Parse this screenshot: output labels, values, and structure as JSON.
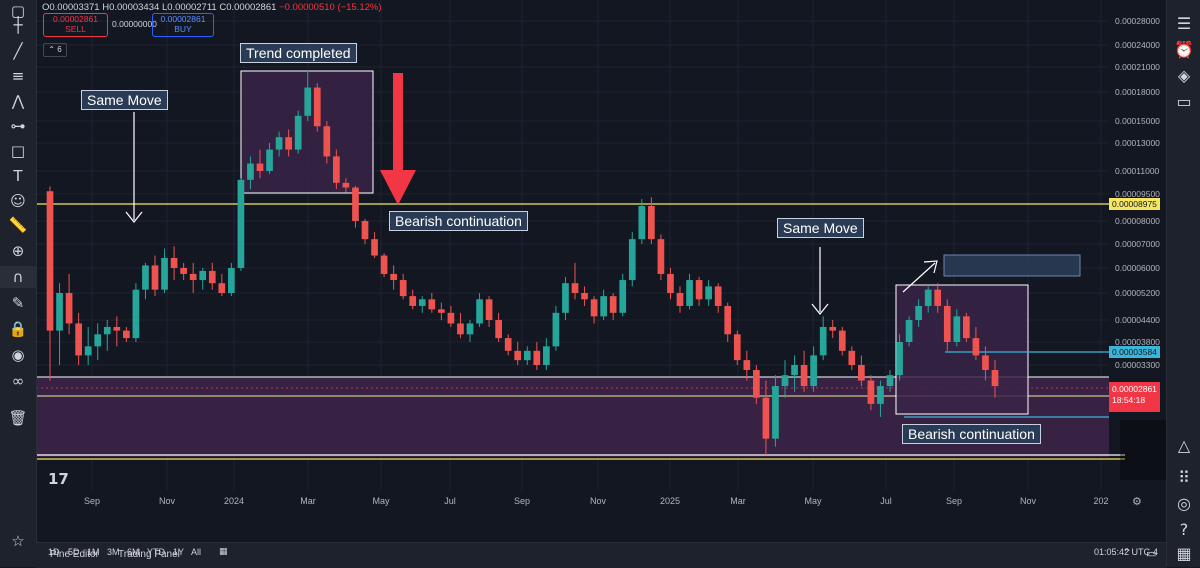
{
  "ohlc": {
    "o": "O0.00003371",
    "h": "H0.00003434",
    "l": "L0.00002711",
    "c": "C0.00002861",
    "change": "−0.00000510 (−15.12%)"
  },
  "trade": {
    "sell_price": "0.00002861",
    "sell_label": "SELL",
    "spread": "0.00000000",
    "buy_price": "0.00002861",
    "buy_label": "BUY"
  },
  "indicator_count": "6",
  "annotations": {
    "trend_completed": "Trend completed",
    "same_move_1": "Same Move",
    "same_move_2": "Same Move",
    "bearish_1": "Bearish continuation",
    "bearish_2": "Bearish continuation"
  },
  "price_badges": {
    "yellow_level": "0.00008975",
    "cyan_level": "0.00003584",
    "current_price": "0.00002861",
    "countdown": "18:54:18"
  },
  "time_ranges": [
    "1D",
    "5D",
    "1M",
    "3M",
    "6M",
    "YTD",
    "1Y",
    "All"
  ],
  "clock": "01:05:42 UTC-4",
  "bottom_tabs": [
    "Pine Editor",
    "Trading Panel"
  ],
  "colors": {
    "background": "#131722",
    "up": "#26a69a",
    "down": "#ef5350",
    "yellow_line": "#f5e663",
    "cyan_line": "#3bb6d9",
    "zone": "#3a2347",
    "arrow_red": "#f23645"
  },
  "chart_data": {
    "type": "candlestick",
    "x_labels": [
      "Sep",
      "Nov",
      "2024",
      "Mar",
      "May",
      "Jul",
      "Sep",
      "Nov",
      "2025",
      "Mar",
      "May",
      "Jul",
      "Sep",
      "Nov",
      "202"
    ],
    "y_labels": [
      "0.00028000",
      "0.00024000",
      "0.00021000",
      "0.00018000",
      "0.00015000",
      "0.00013000",
      "0.00011000",
      "0.00009500",
      "0.00008000",
      "0.00007000",
      "0.00006000",
      "0.00005200",
      "0.00004400",
      "0.00003800",
      "0.00003300"
    ],
    "last": {
      "open": 3.371e-05,
      "high": 3.434e-05,
      "low": 2.711e-05,
      "close": 2.861e-05
    },
    "horizontal_levels": [
      8.975e-05,
      3.584e-05
    ],
    "candles": [
      {
        "o": 9.67e-05,
        "h": 9.97e-05,
        "l": 3e-05,
        "c": 4.1e-05
      },
      {
        "o": 4.1e-05,
        "h": 5.5e-05,
        "l": 3.3e-05,
        "c": 5.2e-05
      },
      {
        "o": 5.2e-05,
        "h": 5.8e-05,
        "l": 4e-05,
        "c": 4.3e-05
      },
      {
        "o": 4.3e-05,
        "h": 4.6e-05,
        "l": 3.3e-05,
        "c": 3.5e-05
      },
      {
        "o": 3.5e-05,
        "h": 4.2e-05,
        "l": 3.3e-05,
        "c": 3.7e-05
      },
      {
        "o": 3.7e-05,
        "h": 4.3e-05,
        "l": 3.4e-05,
        "c": 4e-05
      },
      {
        "o": 4e-05,
        "h": 4.4e-05,
        "l": 3.6e-05,
        "c": 4.2e-05
      },
      {
        "o": 4.2e-05,
        "h": 4.5e-05,
        "l": 3.7e-05,
        "c": 4.1e-05
      },
      {
        "o": 4.1e-05,
        "h": 4.2e-05,
        "l": 3.8e-05,
        "c": 3.9e-05
      },
      {
        "o": 3.9e-05,
        "h": 5.5e-05,
        "l": 3.8e-05,
        "c": 5.3e-05
      },
      {
        "o": 5.3e-05,
        "h": 6.2e-05,
        "l": 5e-05,
        "c": 6.1e-05
      },
      {
        "o": 6.1e-05,
        "h": 6.5e-05,
        "l": 5.1e-05,
        "c": 5.3e-05
      },
      {
        "o": 5.3e-05,
        "h": 6.8e-05,
        "l": 5.2e-05,
        "c": 6.4e-05
      },
      {
        "o": 6.4e-05,
        "h": 6.9e-05,
        "l": 5.6e-05,
        "c": 6e-05
      },
      {
        "o": 6e-05,
        "h": 6.2e-05,
        "l": 5.6e-05,
        "c": 5.8e-05
      },
      {
        "o": 5.8e-05,
        "h": 6.2e-05,
        "l": 5.2e-05,
        "c": 5.6e-05
      },
      {
        "o": 5.6e-05,
        "h": 6e-05,
        "l": 5.3e-05,
        "c": 5.9e-05
      },
      {
        "o": 5.9e-05,
        "h": 6.2e-05,
        "l": 5.3e-05,
        "c": 5.5e-05
      },
      {
        "o": 5.5e-05,
        "h": 5.8e-05,
        "l": 5.1e-05,
        "c": 5.2e-05
      },
      {
        "o": 5.2e-05,
        "h": 6.2e-05,
        "l": 5.1e-05,
        "c": 6e-05
      },
      {
        "o": 6e-05,
        "h": 0.000105,
        "l": 5.9e-05,
        "c": 0.000104
      },
      {
        "o": 0.000104,
        "h": 0.00012,
        "l": 9.8e-05,
        "c": 0.000115
      },
      {
        "o": 0.000115,
        "h": 0.000125,
        "l": 0.000105,
        "c": 0.00011
      },
      {
        "o": 0.00011,
        "h": 0.00013,
        "l": 0.000108,
        "c": 0.000125
      },
      {
        "o": 0.000125,
        "h": 0.00014,
        "l": 0.00012,
        "c": 0.000135
      },
      {
        "o": 0.000135,
        "h": 0.000142,
        "l": 0.00012,
        "c": 0.000125
      },
      {
        "o": 0.000125,
        "h": 0.00016,
        "l": 0.000122,
        "c": 0.000155
      },
      {
        "o": 0.000155,
        "h": 0.000205,
        "l": 0.00015,
        "c": 0.000185
      },
      {
        "o": 0.000185,
        "h": 0.00019,
        "l": 0.00014,
        "c": 0.000145
      },
      {
        "o": 0.000145,
        "h": 0.00015,
        "l": 0.000115,
        "c": 0.00012
      },
      {
        "o": 0.00012,
        "h": 0.000125,
        "l": 9.8e-05,
        "c": 0.000102
      },
      {
        "o": 0.000102,
        "h": 0.000105,
        "l": 9.6e-05,
        "c": 9.9e-05
      },
      {
        "o": 9.9e-05,
        "h": 0.0001,
        "l": 7.7e-05,
        "c": 8e-05
      },
      {
        "o": 8e-05,
        "h": 8.1e-05,
        "l": 7e-05,
        "c": 7.2e-05
      },
      {
        "o": 7.2e-05,
        "h": 7.5e-05,
        "l": 6.4e-05,
        "c": 6.5e-05
      },
      {
        "o": 6.5e-05,
        "h": 6.6e-05,
        "l": 5.7e-05,
        "c": 5.8e-05
      },
      {
        "o": 5.8e-05,
        "h": 6.1e-05,
        "l": 5.3e-05,
        "c": 5.6e-05
      },
      {
        "o": 5.6e-05,
        "h": 5.8e-05,
        "l": 5e-05,
        "c": 5.1e-05
      },
      {
        "o": 5.1e-05,
        "h": 5.3e-05,
        "l": 4.7e-05,
        "c": 4.8e-05
      },
      {
        "o": 4.8e-05,
        "h": 5.1e-05,
        "l": 4.6e-05,
        "c": 5e-05
      },
      {
        "o": 5e-05,
        "h": 5.2e-05,
        "l": 4.6e-05,
        "c": 4.7e-05
      },
      {
        "o": 4.7e-05,
        "h": 4.9e-05,
        "l": 4.4e-05,
        "c": 4.6e-05
      },
      {
        "o": 4.6e-05,
        "h": 4.8e-05,
        "l": 4.2e-05,
        "c": 4.3e-05
      },
      {
        "o": 4.3e-05,
        "h": 4.6e-05,
        "l": 3.9e-05,
        "c": 4e-05
      },
      {
        "o": 4e-05,
        "h": 4.4e-05,
        "l": 3.8e-05,
        "c": 4.3e-05
      },
      {
        "o": 4.3e-05,
        "h": 5.2e-05,
        "l": 4.2e-05,
        "c": 5e-05
      },
      {
        "o": 5e-05,
        "h": 5.1e-05,
        "l": 4.2e-05,
        "c": 4.4e-05
      },
      {
        "o": 4.4e-05,
        "h": 4.6e-05,
        "l": 3.8e-05,
        "c": 3.9e-05
      },
      {
        "o": 3.9e-05,
        "h": 4e-05,
        "l": 3.5e-05,
        "c": 3.6e-05
      },
      {
        "o": 3.6e-05,
        "h": 3.8e-05,
        "l": 3.3e-05,
        "c": 3.4e-05
      },
      {
        "o": 3.4e-05,
        "h": 3.7e-05,
        "l": 3.3e-05,
        "c": 3.6e-05
      },
      {
        "o": 3.6e-05,
        "h": 3.8e-05,
        "l": 3.2e-05,
        "c": 3.3e-05
      },
      {
        "o": 3.3e-05,
        "h": 3.9e-05,
        "l": 3.2e-05,
        "c": 3.7e-05
      },
      {
        "o": 3.7e-05,
        "h": 4.8e-05,
        "l": 3.6e-05,
        "c": 4.6e-05
      },
      {
        "o": 4.6e-05,
        "h": 5.7e-05,
        "l": 4.4e-05,
        "c": 5.5e-05
      },
      {
        "o": 5.5e-05,
        "h": 6.2e-05,
        "l": 5e-05,
        "c": 5.2e-05
      },
      {
        "o": 5.2e-05,
        "h": 5.4e-05,
        "l": 4.8e-05,
        "c": 5e-05
      },
      {
        "o": 5e-05,
        "h": 5.1e-05,
        "l": 4.3e-05,
        "c": 4.5e-05
      },
      {
        "o": 4.5e-05,
        "h": 5.3e-05,
        "l": 4.4e-05,
        "c": 5.1e-05
      },
      {
        "o": 5.1e-05,
        "h": 5.2e-05,
        "l": 4.4e-05,
        "c": 4.6e-05
      },
      {
        "o": 4.6e-05,
        "h": 5.8e-05,
        "l": 4.5e-05,
        "c": 5.6e-05
      },
      {
        "o": 5.6e-05,
        "h": 7.5e-05,
        "l": 5.4e-05,
        "c": 7.2e-05
      },
      {
        "o": 7.2e-05,
        "h": 9.2e-05,
        "l": 7e-05,
        "c": 8.8e-05
      },
      {
        "o": 8.8e-05,
        "h": 9.3e-05,
        "l": 7e-05,
        "c": 7.2e-05
      },
      {
        "o": 7.2e-05,
        "h": 7.4e-05,
        "l": 5.6e-05,
        "c": 5.8e-05
      },
      {
        "o": 5.8e-05,
        "h": 6e-05,
        "l": 5e-05,
        "c": 5.2e-05
      },
      {
        "o": 5.2e-05,
        "h": 5.4e-05,
        "l": 4.6e-05,
        "c": 4.8e-05
      },
      {
        "o": 4.8e-05,
        "h": 5.8e-05,
        "l": 4.7e-05,
        "c": 5.6e-05
      },
      {
        "o": 5.6e-05,
        "h": 5.7e-05,
        "l": 4.8e-05,
        "c": 5e-05
      },
      {
        "o": 5e-05,
        "h": 5.6e-05,
        "l": 4.8e-05,
        "c": 5.4e-05
      },
      {
        "o": 5.4e-05,
        "h": 5.5e-05,
        "l": 4.6e-05,
        "c": 4.8e-05
      },
      {
        "o": 4.8e-05,
        "h": 4.9e-05,
        "l": 3.8e-05,
        "c": 4e-05
      },
      {
        "o": 4e-05,
        "h": 4.1e-05,
        "l": 3.3e-05,
        "c": 3.4e-05
      },
      {
        "o": 3.4e-05,
        "h": 3.6e-05,
        "l": 3e-05,
        "c": 3.2e-05
      },
      {
        "o": 3.2e-05,
        "h": 3.3e-05,
        "l": 2.6e-05,
        "c": 2.7e-05
      },
      {
        "o": 2.7e-05,
        "h": 3e-05,
        "l": 1.9e-05,
        "c": 2.1e-05
      },
      {
        "o": 2.1e-05,
        "h": 3.1e-05,
        "l": 2e-05,
        "c": 2.9e-05
      },
      {
        "o": 2.9e-05,
        "h": 3.4e-05,
        "l": 2.7e-05,
        "c": 3.1e-05
      },
      {
        "o": 3.1e-05,
        "h": 3.5e-05,
        "l": 2.8e-05,
        "c": 3.3e-05
      },
      {
        "o": 3.3e-05,
        "h": 3.6e-05,
        "l": 2.8e-05,
        "c": 2.9e-05
      },
      {
        "o": 2.9e-05,
        "h": 3.7e-05,
        "l": 2.8e-05,
        "c": 3.5e-05
      },
      {
        "o": 3.5e-05,
        "h": 4.5e-05,
        "l": 3.4e-05,
        "c": 4.2e-05
      },
      {
        "o": 4.2e-05,
        "h": 4.4e-05,
        "l": 3.9e-05,
        "c": 4.1e-05
      },
      {
        "o": 4.1e-05,
        "h": 4.2e-05,
        "l": 3.5e-05,
        "c": 3.6e-05
      },
      {
        "o": 3.6e-05,
        "h": 3.7e-05,
        "l": 3.2e-05,
        "c": 3.3e-05
      },
      {
        "o": 3.3e-05,
        "h": 3.5e-05,
        "l": 2.9e-05,
        "c": 3e-05
      },
      {
        "o": 3e-05,
        "h": 3.1e-05,
        "l": 2.5e-05,
        "c": 2.6e-05
      },
      {
        "o": 2.6e-05,
        "h": 3e-05,
        "l": 2.4e-05,
        "c": 2.9e-05
      },
      {
        "o": 2.9e-05,
        "h": 3.2e-05,
        "l": 2.8e-05,
        "c": 3.1e-05
      },
      {
        "o": 3.1e-05,
        "h": 4e-05,
        "l": 3e-05,
        "c": 3.8e-05
      },
      {
        "o": 3.8e-05,
        "h": 4.5e-05,
        "l": 3.7e-05,
        "c": 4.4e-05
      },
      {
        "o": 4.4e-05,
        "h": 5e-05,
        "l": 4.2e-05,
        "c": 4.8e-05
      },
      {
        "o": 4.8e-05,
        "h": 5.4e-05,
        "l": 4.6e-05,
        "c": 5.3e-05
      },
      {
        "o": 5.3e-05,
        "h": 5.5e-05,
        "l": 4.6e-05,
        "c": 4.8e-05
      },
      {
        "o": 4.8e-05,
        "h": 5e-05,
        "l": 3.6e-05,
        "c": 3.8e-05
      },
      {
        "o": 3.8e-05,
        "h": 4.7e-05,
        "l": 3.7e-05,
        "c": 4.5e-05
      },
      {
        "o": 4.5e-05,
        "h": 4.6e-05,
        "l": 3.8e-05,
        "c": 3.9e-05
      },
      {
        "o": 3.9e-05,
        "h": 4.2e-05,
        "l": 3.4e-05,
        "c": 3.5e-05
      },
      {
        "o": 3.5e-05,
        "h": 3.7e-05,
        "l": 3e-05,
        "c": 3.2e-05
      },
      {
        "o": 3.2e-05,
        "h": 3.4e-05,
        "l": 2.7e-05,
        "c": 2.9e-05
      }
    ]
  }
}
